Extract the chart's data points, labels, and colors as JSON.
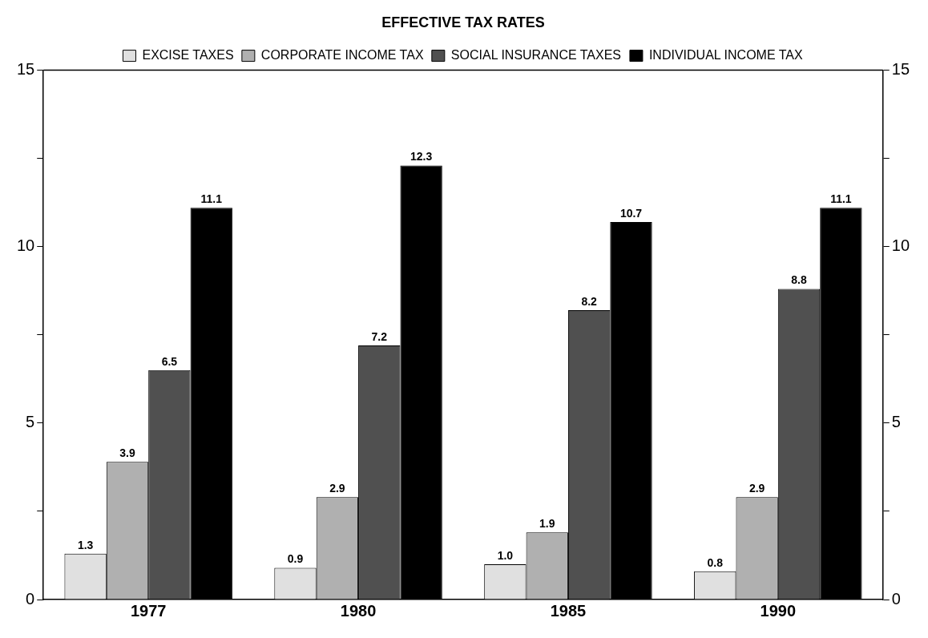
{
  "chart_data": {
    "type": "bar",
    "title": "EFFECTIVE TAX RATES",
    "categories": [
      "1977",
      "1980",
      "1985",
      "1990"
    ],
    "series": [
      {
        "name": "EXCISE TAXES",
        "color": "#e0e0e0",
        "values": [
          1.3,
          0.9,
          1.0,
          0.8
        ],
        "value_labels": [
          "1.3",
          "0.9",
          "1.0",
          "0.8"
        ]
      },
      {
        "name": "CORPORATE INCOME TAX",
        "color": "#b0b0b0",
        "values": [
          3.9,
          2.9,
          1.9,
          2.9
        ],
        "value_labels": [
          "3.9",
          "2.9",
          "1.9",
          "2.9"
        ]
      },
      {
        "name": "SOCIAL INSURANCE TAXES",
        "color": "#505050",
        "values": [
          6.5,
          7.2,
          8.2,
          8.8
        ],
        "value_labels": [
          "6.5",
          "7.2",
          "8.2",
          "8.8"
        ]
      },
      {
        "name": "INDIVIDUAL INCOME TAX",
        "color": "#000000",
        "values": [
          11.1,
          12.3,
          10.7,
          11.1
        ],
        "value_labels": [
          "11.1",
          "12.3",
          "10.7",
          "11.1"
        ]
      }
    ],
    "ylim": [
      0,
      15
    ],
    "yticks": [
      0,
      {
        "value": 2.5,
        "label": null
      },
      5,
      {
        "value": 7.5,
        "label": null
      },
      10,
      {
        "value": 12.5,
        "label": null
      },
      15
    ],
    "y2lim": [
      0,
      15
    ],
    "y2ticks": [
      0,
      {
        "value": 2.5,
        "label": null
      },
      5,
      {
        "value": 7.5,
        "label": null
      },
      10,
      {
        "value": 12.5,
        "label": null
      },
      15
    ],
    "grid": false,
    "legend": "top"
  }
}
